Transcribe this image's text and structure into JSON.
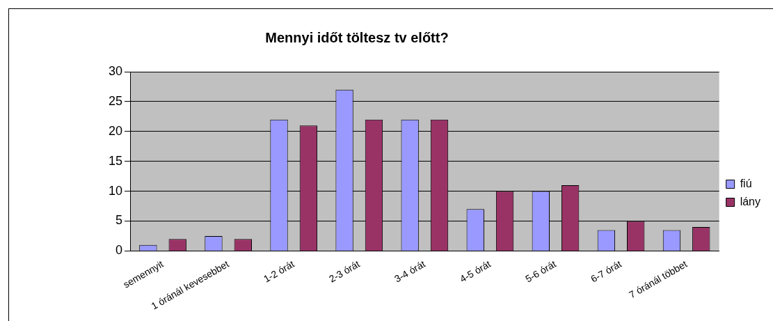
{
  "chart_data": {
    "type": "bar",
    "title": "Mennyi időt töltesz tv előtt?",
    "categories": [
      "semennyit",
      "1 óránál kevesebbet",
      "1-2 órát",
      "2-3 órát",
      "3-4 órát",
      "4-5 órát",
      "5-6 órát",
      "6-7 órát",
      "7 óránál többet"
    ],
    "series": [
      {
        "name": "fiú",
        "color": "#9999ff",
        "values": [
          1,
          2.5,
          22,
          27,
          22,
          7,
          10,
          3.5,
          3.5
        ]
      },
      {
        "name": "lány",
        "color": "#993366",
        "values": [
          2,
          2,
          21,
          22,
          22,
          10,
          11,
          5,
          4
        ]
      }
    ],
    "ylim": [
      0,
      30
    ],
    "yticks": [
      0,
      5,
      10,
      15,
      20,
      25,
      30
    ],
    "grid": "y",
    "legend": "right"
  }
}
